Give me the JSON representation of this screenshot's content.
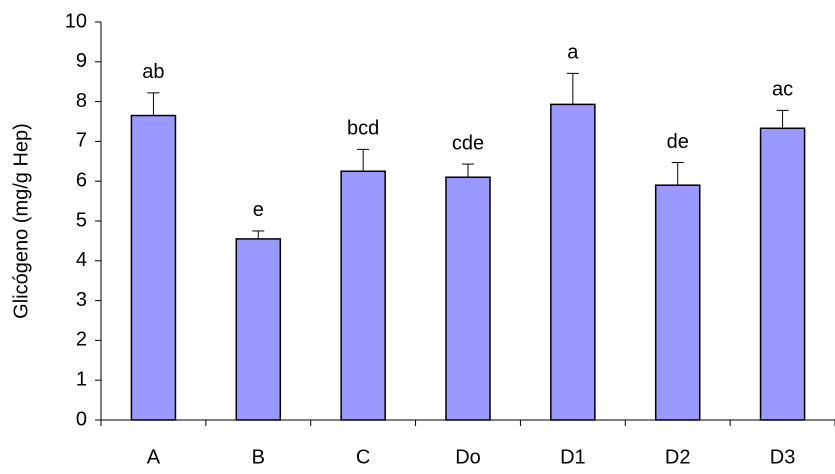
{
  "chart_data": {
    "type": "bar",
    "y_label": "Glicógeno (mg/g Hep)",
    "categories": [
      "A",
      "B",
      "C",
      "Do",
      "D1",
      "D2",
      "D3"
    ],
    "values": [
      7.65,
      4.55,
      6.25,
      6.1,
      7.93,
      5.9,
      7.33
    ],
    "errors": [
      0.57,
      0.2,
      0.55,
      0.33,
      0.78,
      0.57,
      0.45
    ],
    "letters": [
      "ab",
      "e",
      "bcd",
      "cde",
      "a",
      "de",
      "ac"
    ],
    "color": "#9999ff",
    "ylim": [
      0,
      10
    ],
    "yticks": [
      0,
      1,
      2,
      3,
      4,
      5,
      6,
      7,
      8,
      9,
      10
    ],
    "grid": false
  }
}
